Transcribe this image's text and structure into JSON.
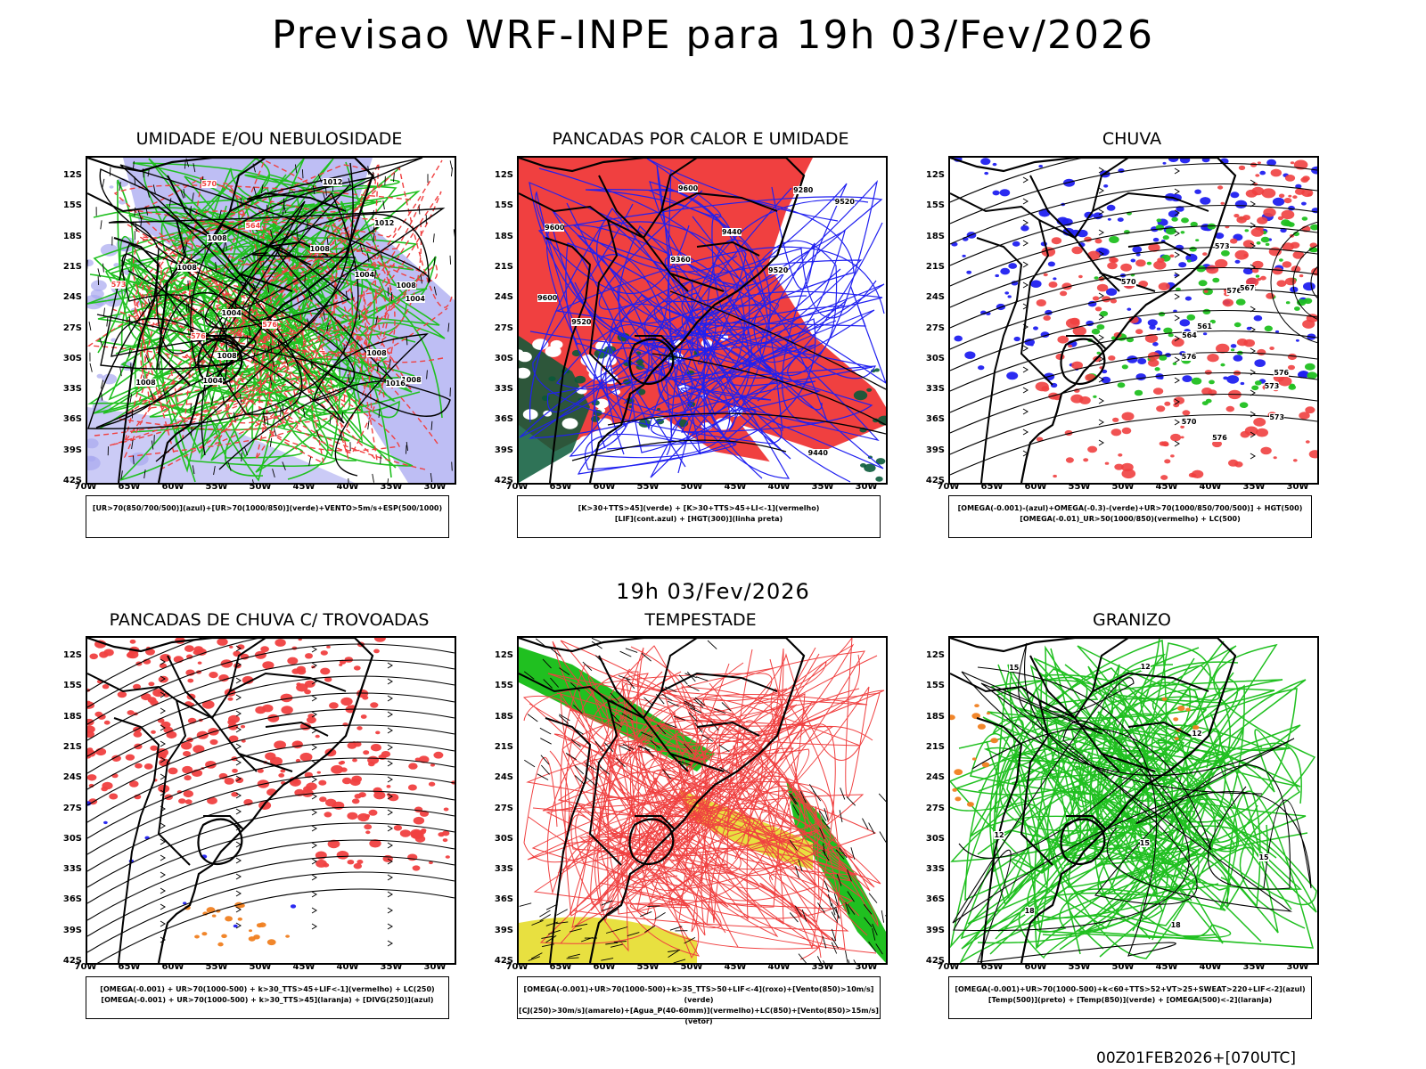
{
  "title": "Previsao WRF-INPE  para 19h 03/Fev/2026",
  "mid_time": "19h 03/Fev/2026",
  "footer": "00Z01FEB2026+[070UTC]",
  "lat_labels": [
    "12S",
    "15S",
    "18S",
    "21S",
    "24S",
    "27S",
    "30S",
    "33S",
    "36S",
    "39S",
    "42S"
  ],
  "lon_labels": [
    "70W",
    "65W",
    "60W",
    "55W",
    "50W",
    "45W",
    "40W",
    "35W",
    "30W"
  ],
  "colors": {
    "red": "#f04040",
    "green": "#20c020",
    "blue": "#2020f0",
    "lavender": "#a8a8f0",
    "yellow": "#e8e040",
    "darkgreen": "#0a5a3a",
    "orange": "#f08020"
  },
  "panels": [
    {
      "id": "umidade",
      "title": "UMIDADE E/OU NEBULOSIDADE",
      "legend": [
        "[UR>70(850/700/500)](azul)+[UR>70(1000/850)](verde)+VENTO>5m/s+ESP(500/1000)"
      ],
      "contour_labels": [
        "1008",
        "1008",
        "1008",
        "1004",
        "1004",
        "1008",
        "1008",
        "1012",
        "1016",
        "1012",
        "1008",
        "1008",
        "1004",
        "1004",
        "1008",
        "576",
        "576",
        "573",
        "570",
        "564"
      ]
    },
    {
      "id": "pancadas_calor",
      "title": "PANCADAS POR CALOR E UMIDADE",
      "legend": [
        "[K>30+TTS>45](verde) + [K>30+TTS>45+LI<-1](vermelho)",
        "[LIF](cont.azul) + [HGT(300)](linha preta)"
      ],
      "contour_labels": [
        "9600",
        "9600",
        "9520",
        "9520",
        "9600",
        "9440",
        "9520",
        "9440",
        "9360",
        "9280"
      ]
    },
    {
      "id": "chuva",
      "title": "CHUVA",
      "legend": [
        "[OMEGA(-0.001)-(azul)+OMEGA(-0.3)-(verde)+UR>70(1000/850/700/500)] + HGT(500)",
        "[OMEGA(-0.01)_UR>50(1000/850)(vermelho) + LC(500)"
      ],
      "contour_labels": [
        "576",
        "576",
        "576",
        "573",
        "570",
        "573",
        "567",
        "570",
        "573",
        "576",
        "561",
        "564"
      ]
    },
    {
      "id": "pancadas_trovoadas",
      "title": "PANCADAS DE CHUVA C/ TROVOADAS",
      "legend": [
        "[OMEGA(-0.001) + UR>70(1000-500) + k>30_TTS>45+LIF<-1](vermelho) + LC(250)",
        "[OMEGA(-0.001) + UR>70(1000-500) + k>30_TTS>45](laranja) + [DIVG(250)](azul)"
      ],
      "contour_labels": []
    },
    {
      "id": "tempestade",
      "title": "TEMPESTADE",
      "legend": [
        "[OMEGA(-0.001)+UR>70(1000-500)+k>35_TTS>50+LIF<-4](roxo)+[Vento(850)>10m/s](verde)",
        "[CJ(250)>30m/s](amarelo)+[Agua_P(40-60mm)](vermelho)+LC(850)+[Vento(850)>15m/s](vetor)"
      ],
      "contour_labels": []
    },
    {
      "id": "granizo",
      "title": "GRANIZO",
      "legend": [
        "[OMEGA(-0.001)+UR>70(1000-500)+k<60+TTS>52+VT>25+SWEAT>220+LIF<-2](azul)",
        "[Temp(500)](preto) + [Temp(850)](verde) + [OMEGA(500)<-2](laranja)"
      ],
      "contour_labels": [
        "12",
        "15",
        "12",
        "15",
        "18",
        "12",
        "15",
        "18"
      ]
    }
  ]
}
